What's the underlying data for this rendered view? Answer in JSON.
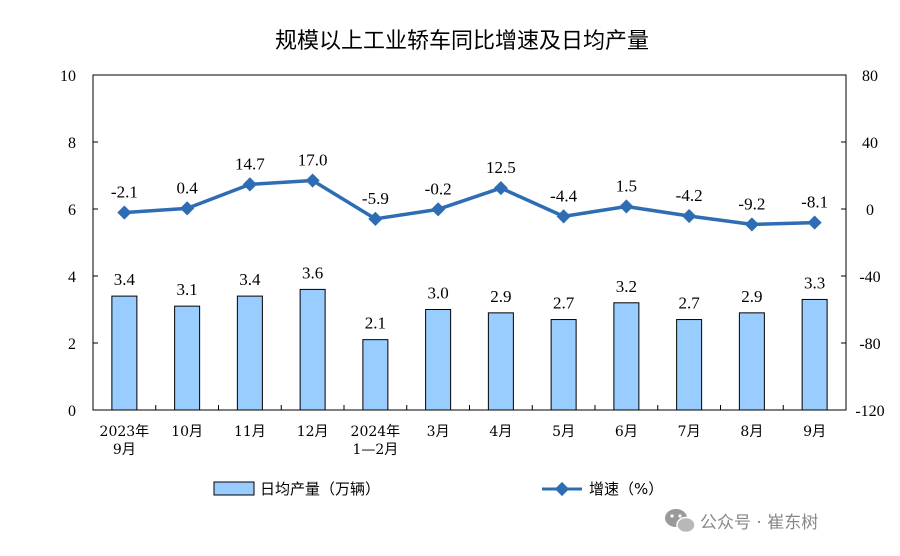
{
  "chart_data": {
    "type": "bar+line",
    "title": "规模以上工业轿车同比增速及日均产量",
    "categories": [
      [
        "2023年",
        "9月"
      ],
      [
        "10月"
      ],
      [
        "11月"
      ],
      [
        "12月"
      ],
      [
        "2024年",
        "1—2月"
      ],
      [
        "3月"
      ],
      [
        "4月"
      ],
      [
        "5月"
      ],
      [
        "6月"
      ],
      [
        "7月"
      ],
      [
        "8月"
      ],
      [
        "9月"
      ]
    ],
    "series": [
      {
        "name": "日均产量（万辆）",
        "type": "bar",
        "axis": "left",
        "color": "#99CCFF",
        "values": [
          3.4,
          3.1,
          3.4,
          3.6,
          2.1,
          3.0,
          2.9,
          2.7,
          3.2,
          2.7,
          2.9,
          3.3
        ],
        "labels": [
          "3.4",
          "3.1",
          "3.4",
          "3.6",
          "2.1",
          "3.0",
          "2.9",
          "2.7",
          "3.2",
          "2.7",
          "2.9",
          "3.3"
        ]
      },
      {
        "name": "增速（%）",
        "type": "line",
        "axis": "right",
        "color": "#2E6DB4",
        "values": [
          -2.1,
          0.4,
          14.7,
          17.0,
          -5.9,
          -0.2,
          12.5,
          -4.4,
          1.5,
          -4.2,
          -9.2,
          -8.1
        ],
        "labels": [
          "-2.1",
          "0.4",
          "14.7",
          "17.0",
          "-5.9",
          "-0.2",
          "12.5",
          "-4.4",
          "1.5",
          "-4.2",
          "-9.2",
          "-8.1"
        ]
      }
    ],
    "y_left": {
      "range": [
        0,
        10
      ],
      "ticks": [
        "0",
        "2",
        "4",
        "6",
        "8",
        "10"
      ]
    },
    "y_right": {
      "range": [
        -120,
        80
      ],
      "ticks": [
        "-120",
        "-80",
        "-40",
        "0",
        "40",
        "80"
      ]
    },
    "grid": false,
    "legend": "bottom"
  },
  "watermark": "公众号 · 崔东树"
}
